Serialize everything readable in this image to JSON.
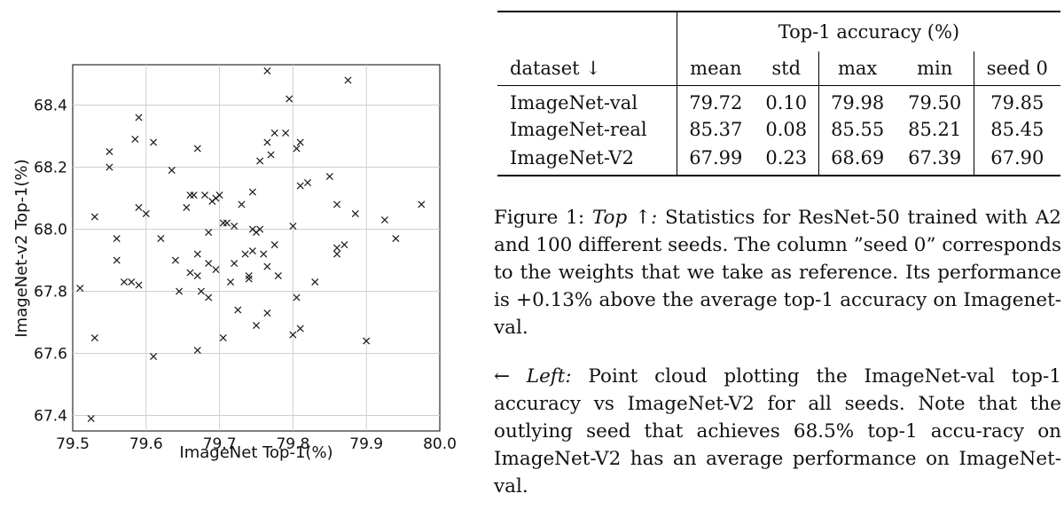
{
  "chart_data": {
    "type": "scatter",
    "xlabel": "ImageNet Top-1(%)",
    "ylabel": "ImageNet-v2 Top-1(%)",
    "xlim": [
      79.5,
      80.0
    ],
    "ylim": [
      67.35,
      68.53
    ],
    "xticks": [
      "79.5",
      "79.6",
      "79.7",
      "79.8",
      "79.9",
      "80.0"
    ],
    "yticks": [
      "67.4",
      "67.6",
      "67.8",
      "68.0",
      "68.2",
      "68.4"
    ],
    "marker": "x",
    "grid": true,
    "color": "#1a1a1a",
    "points": [
      [
        79.51,
        67.81
      ],
      [
        79.525,
        67.39
      ],
      [
        79.53,
        68.04
      ],
      [
        79.53,
        67.65
      ],
      [
        79.55,
        68.25
      ],
      [
        79.55,
        68.2
      ],
      [
        79.56,
        67.97
      ],
      [
        79.56,
        67.9
      ],
      [
        79.57,
        67.83
      ],
      [
        79.58,
        67.83
      ],
      [
        79.585,
        68.29
      ],
      [
        79.59,
        68.36
      ],
      [
        79.59,
        68.07
      ],
      [
        79.59,
        67.82
      ],
      [
        79.6,
        68.05
      ],
      [
        79.61,
        68.28
      ],
      [
        79.61,
        67.59
      ],
      [
        79.62,
        67.97
      ],
      [
        79.635,
        68.19
      ],
      [
        79.64,
        67.9
      ],
      [
        79.645,
        67.8
      ],
      [
        79.655,
        68.07
      ],
      [
        79.66,
        68.11
      ],
      [
        79.665,
        68.11
      ],
      [
        79.66,
        67.86
      ],
      [
        79.67,
        68.26
      ],
      [
        79.67,
        67.92
      ],
      [
        79.67,
        67.85
      ],
      [
        79.67,
        67.61
      ],
      [
        79.675,
        67.8
      ],
      [
        79.68,
        68.11
      ],
      [
        79.685,
        67.89
      ],
      [
        79.685,
        67.78
      ],
      [
        79.685,
        67.99
      ],
      [
        79.69,
        68.09
      ],
      [
        79.695,
        67.87
      ],
      [
        79.695,
        68.1
      ],
      [
        79.7,
        68.11
      ],
      [
        79.705,
        68.02
      ],
      [
        79.705,
        67.65
      ],
      [
        79.71,
        68.02
      ],
      [
        79.715,
        67.83
      ],
      [
        79.72,
        68.01
      ],
      [
        79.72,
        67.89
      ],
      [
        79.725,
        67.74
      ],
      [
        79.73,
        68.08
      ],
      [
        79.735,
        67.92
      ],
      [
        79.74,
        67.85
      ],
      [
        79.74,
        67.84
      ],
      [
        79.745,
        68.12
      ],
      [
        79.745,
        68.0
      ],
      [
        79.745,
        67.93
      ],
      [
        79.75,
        67.99
      ],
      [
        79.75,
        67.69
      ],
      [
        79.755,
        68.0
      ],
      [
        79.755,
        68.22
      ],
      [
        79.76,
        67.92
      ],
      [
        79.765,
        68.28
      ],
      [
        79.765,
        67.88
      ],
      [
        79.77,
        68.24
      ],
      [
        79.765,
        67.73
      ],
      [
        79.765,
        68.51
      ],
      [
        79.775,
        68.31
      ],
      [
        79.775,
        67.95
      ],
      [
        79.78,
        67.85
      ],
      [
        79.79,
        68.31
      ],
      [
        79.795,
        68.42
      ],
      [
        79.8,
        68.01
      ],
      [
        79.8,
        67.66
      ],
      [
        79.805,
        67.78
      ],
      [
        79.805,
        68.26
      ],
      [
        79.81,
        68.28
      ],
      [
        79.81,
        68.14
      ],
      [
        79.81,
        67.68
      ],
      [
        79.82,
        68.15
      ],
      [
        79.83,
        67.83
      ],
      [
        79.85,
        68.17
      ],
      [
        79.86,
        68.08
      ],
      [
        79.86,
        67.94
      ],
      [
        79.86,
        67.92
      ],
      [
        79.87,
        67.95
      ],
      [
        79.875,
        68.48
      ],
      [
        79.885,
        68.05
      ],
      [
        79.9,
        67.64
      ],
      [
        79.925,
        68.03
      ],
      [
        79.94,
        67.97
      ],
      [
        79.975,
        68.08
      ]
    ]
  },
  "table": {
    "header_group": "Top-1 accuracy (%)",
    "columns": [
      "dataset ↓",
      "mean",
      "std",
      "max",
      "min",
      "seed 0"
    ],
    "rows": [
      [
        "ImageNet-val",
        "79.72",
        "0.10",
        "79.98",
        "79.50",
        "79.85"
      ],
      [
        "ImageNet-real",
        "85.37",
        "0.08",
        "85.55",
        "85.21",
        "85.45"
      ],
      [
        "ImageNet-V2",
        "67.99",
        "0.23",
        "68.69",
        "67.39",
        "67.90"
      ]
    ]
  },
  "caption1": {
    "lead": "Figure 1: ",
    "italic": "Top ↑:",
    "text": " Statistics for ResNet-50 trained with A2 and 100 different seeds.  The column ”seed 0” corresponds to the weights that we take as reference. Its performance is +0.13% above the average top-1 accuracy on Imagenet-val."
  },
  "caption2": {
    "italic": "← Left:",
    "text": " Point cloud plotting the ImageNet-val top-1 accuracy vs ImageNet-V2 for all seeds.  Note that the outlying seed that achieves 68.5% top-1 accu-racy on ImageNet-V2 has an average performance on ImageNet-val."
  }
}
